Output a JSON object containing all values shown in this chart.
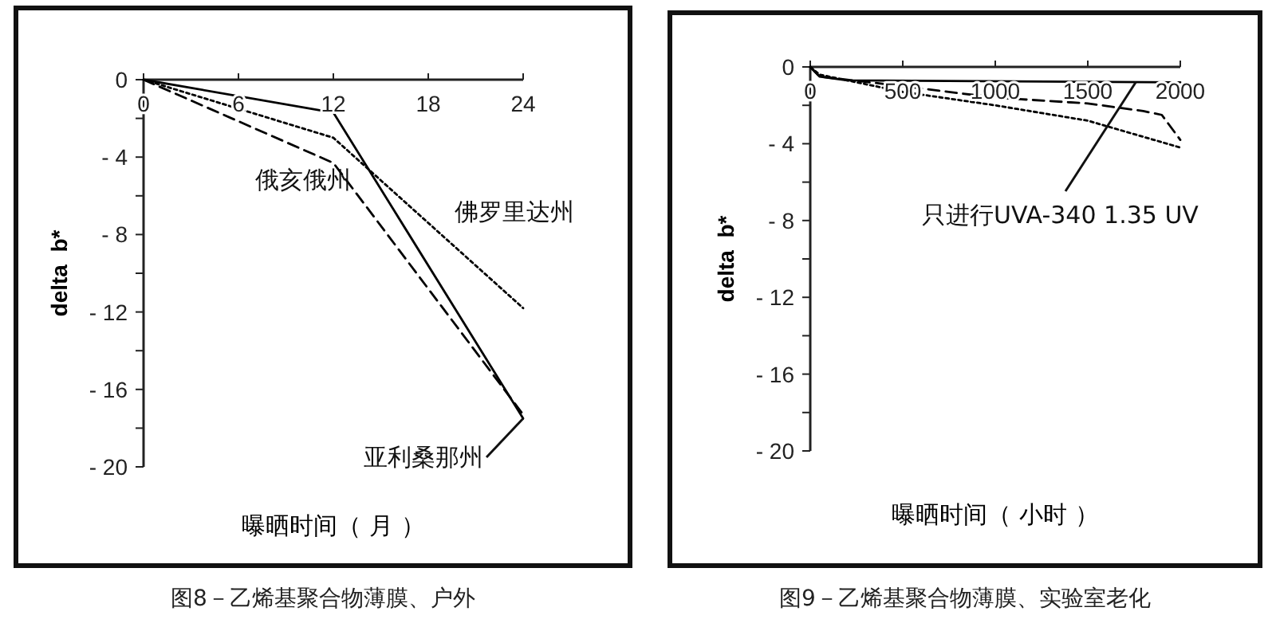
{
  "chart_data": [
    {
      "type": "line",
      "title": "图8－乙烯基聚合物薄膜、户外",
      "xlabel": "曝晒时间（ 月 ）",
      "ylabel": "delta  b*",
      "xlim": [
        0,
        24
      ],
      "ylim": [
        -20,
        0
      ],
      "xticks": [
        0,
        6,
        12,
        18,
        24
      ],
      "yticks": [
        0,
        {
          "value": -2,
          "label": null
        },
        -4,
        {
          "value": -6,
          "label": null
        },
        -8,
        {
          "value": -10,
          "label": null
        },
        -12,
        {
          "value": -14,
          "label": null
        },
        -16,
        {
          "value": -18,
          "label": null
        },
        -20
      ],
      "x": [
        0,
        12,
        24
      ],
      "grid": false,
      "marker": "none",
      "series": [
        {
          "name": "俄亥俄州",
          "color": "#000000",
          "line_style": "dashed",
          "values": [
            0,
            -4.3,
            -17.3
          ]
        },
        {
          "name": "佛罗里达州",
          "color": "#000000",
          "line_style": "dotted",
          "values": [
            0,
            -3,
            -11.8
          ]
        },
        {
          "name": "亚利桑那州",
          "color": "#000000",
          "line_style": "solid",
          "values": [
            0,
            -1.7,
            -17.5
          ]
        }
      ]
    },
    {
      "type": "line",
      "title": "图9－乙烯基聚合物薄膜、实验室老化",
      "xlabel": "曝晒时间（ 小时 ）",
      "ylabel": "delta  b*",
      "xlim": [
        0,
        2000
      ],
      "ylim": [
        -20,
        0
      ],
      "xticks": [
        0,
        500,
        1000,
        1500,
        2000
      ],
      "yticks": [
        0,
        {
          "value": -2,
          "label": null
        },
        -4,
        {
          "value": -6,
          "label": null
        },
        -8,
        {
          "value": -10,
          "label": null
        },
        -12,
        {
          "value": -14,
          "label": null
        },
        -16,
        {
          "value": -18,
          "label": null
        },
        -20
      ],
      "grid": false,
      "marker": "none",
      "series": [
        {
          "name": "只进行UVA-340 1.35 UV",
          "color": "#000000",
          "line_style": "solid",
          "x": [
            0,
            50,
            200,
            2000
          ],
          "values": [
            0,
            -0.5,
            -0.7,
            -0.8
          ]
        },
        {
          "color": "#000000",
          "line_style": "dashed",
          "x": [
            0,
            50,
            500,
            1000,
            1500,
            1800,
            1900,
            2000
          ],
          "values": [
            0,
            -0.5,
            -1,
            -1.6,
            -1.9,
            -2.3,
            -2.5,
            -3.8
          ]
        },
        {
          "color": "#000000",
          "line_style": "dotted",
          "x": [
            0,
            50,
            500,
            1000,
            1500,
            2000
          ],
          "values": [
            0,
            -0.4,
            -1.3,
            -2,
            -2.8,
            -4.2
          ]
        }
      ]
    }
  ]
}
